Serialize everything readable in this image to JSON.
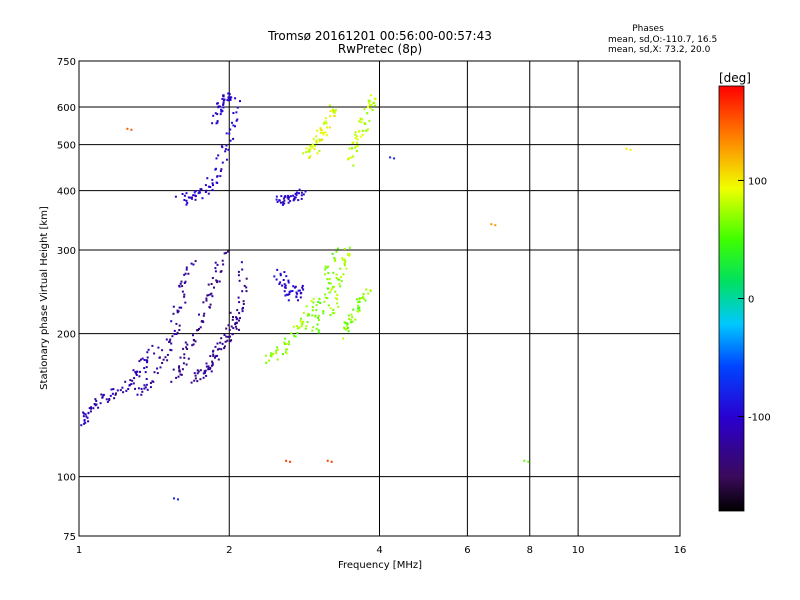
{
  "chart_data": {
    "type": "scatter",
    "title": "Tromsø 20161201 00:56:00-00:57:43",
    "subtitle": "RwPretec (8p)",
    "xlabel": "Frequency [MHz]",
    "ylabel": "Stationary phase Virtual Height [km]",
    "x_scale": "log",
    "y_scale": "log",
    "xlim": [
      1,
      16
    ],
    "ylim": [
      75,
      750
    ],
    "x_ticks": [
      1,
      2,
      4,
      6,
      8,
      10,
      16
    ],
    "x_tick_labels": [
      "1",
      "2",
      "4",
      "6",
      "8",
      "10",
      "16"
    ],
    "y_ticks": [
      75,
      100,
      200,
      300,
      400,
      500,
      600,
      750
    ],
    "y_tick_labels": [
      "75",
      "100",
      "200",
      "300",
      "400",
      "500",
      "600",
      "750"
    ],
    "grid": true,
    "legend_info": {
      "heading": "Phases",
      "line1": "mean, sd,O:-110.7, 16.5",
      "line2": "mean, sd,X:  73.2, 20.0"
    },
    "colorbar": {
      "label": "[deg]",
      "range": [
        -180,
        180
      ],
      "ticks": [
        100,
        0,
        -100
      ],
      "tick_labels": [
        "100",
        "0",
        "-100"
      ]
    },
    "traces": [
      {
        "x": [
          1.0,
          1.04,
          1.1,
          1.18,
          1.28,
          1.35,
          1.42
        ],
        "y": [
          128,
          135,
          145,
          150,
          160,
          172,
          185
        ],
        "phase": -115
      },
      {
        "x": [
          1.3,
          1.4,
          1.5,
          1.56,
          1.62,
          1.68
        ],
        "y": [
          150,
          160,
          185,
          210,
          250,
          290
        ],
        "phase": -125
      },
      {
        "x": [
          1.55,
          1.62,
          1.7,
          1.8,
          1.88,
          1.95
        ],
        "y": [
          160,
          175,
          200,
          230,
          260,
          300
        ],
        "phase": -130
      },
      {
        "x": [
          1.7,
          1.78,
          1.85,
          1.92,
          2.0,
          2.06
        ],
        "y": [
          160,
          165,
          175,
          185,
          200,
          220
        ],
        "phase": -128
      },
      {
        "x": [
          1.6,
          1.7,
          1.8,
          1.9,
          2.0,
          2.1
        ],
        "y": [
          380,
          390,
          400,
          440,
          520,
          620
        ],
        "phase": -100
      },
      {
        "x": [
          1.88,
          1.92,
          1.96,
          2.0
        ],
        "y": [
          560,
          600,
          630,
          640
        ],
        "phase": -105
      },
      {
        "x": [
          2.05,
          2.1,
          2.15
        ],
        "y": [
          200,
          230,
          280
        ],
        "phase": -128
      },
      {
        "x": [
          2.5,
          2.6,
          2.7,
          2.8
        ],
        "y": [
          270,
          250,
          240,
          250
        ],
        "phase": -100
      },
      {
        "x": [
          2.4,
          2.55,
          2.7,
          2.85,
          3.0
        ],
        "y": [
          175,
          185,
          200,
          215,
          240
        ],
        "phase": 70
      },
      {
        "x": [
          2.95,
          3.05,
          3.15,
          3.25
        ],
        "y": [
          200,
          230,
          260,
          300
        ],
        "phase": 60
      },
      {
        "x": [
          3.35,
          3.5,
          3.65,
          3.8
        ],
        "y": [
          200,
          215,
          230,
          250
        ],
        "phase": 65
      },
      {
        "x": [
          3.2,
          3.28,
          3.38,
          3.45
        ],
        "y": [
          220,
          250,
          280,
          300
        ],
        "phase": 75
      },
      {
        "x": [
          2.85,
          2.95,
          3.05,
          3.15,
          3.25
        ],
        "y": [
          470,
          490,
          520,
          560,
          600
        ],
        "phase": 90
      },
      {
        "x": [
          3.5,
          3.6,
          3.7,
          3.8,
          3.9
        ],
        "y": [
          460,
          500,
          540,
          590,
          640
        ],
        "phase": 80
      },
      {
        "x": [
          2.5,
          2.6,
          2.7,
          2.8
        ],
        "y": [
          380,
          385,
          390,
          395
        ],
        "phase": -105
      }
    ],
    "isolated_points": [
      {
        "x": 2.6,
        "y": 108,
        "phase": 160
      },
      {
        "x": 3.15,
        "y": 108,
        "phase": 160
      },
      {
        "x": 7.8,
        "y": 108,
        "phase": 60
      },
      {
        "x": 12.5,
        "y": 490,
        "phase": 100
      },
      {
        "x": 6.7,
        "y": 340,
        "phase": 130
      },
      {
        "x": 4.2,
        "y": 470,
        "phase": -80
      },
      {
        "x": 1.55,
        "y": 90,
        "phase": -80
      },
      {
        "x": 1.25,
        "y": 540,
        "phase": 150
      }
    ]
  }
}
